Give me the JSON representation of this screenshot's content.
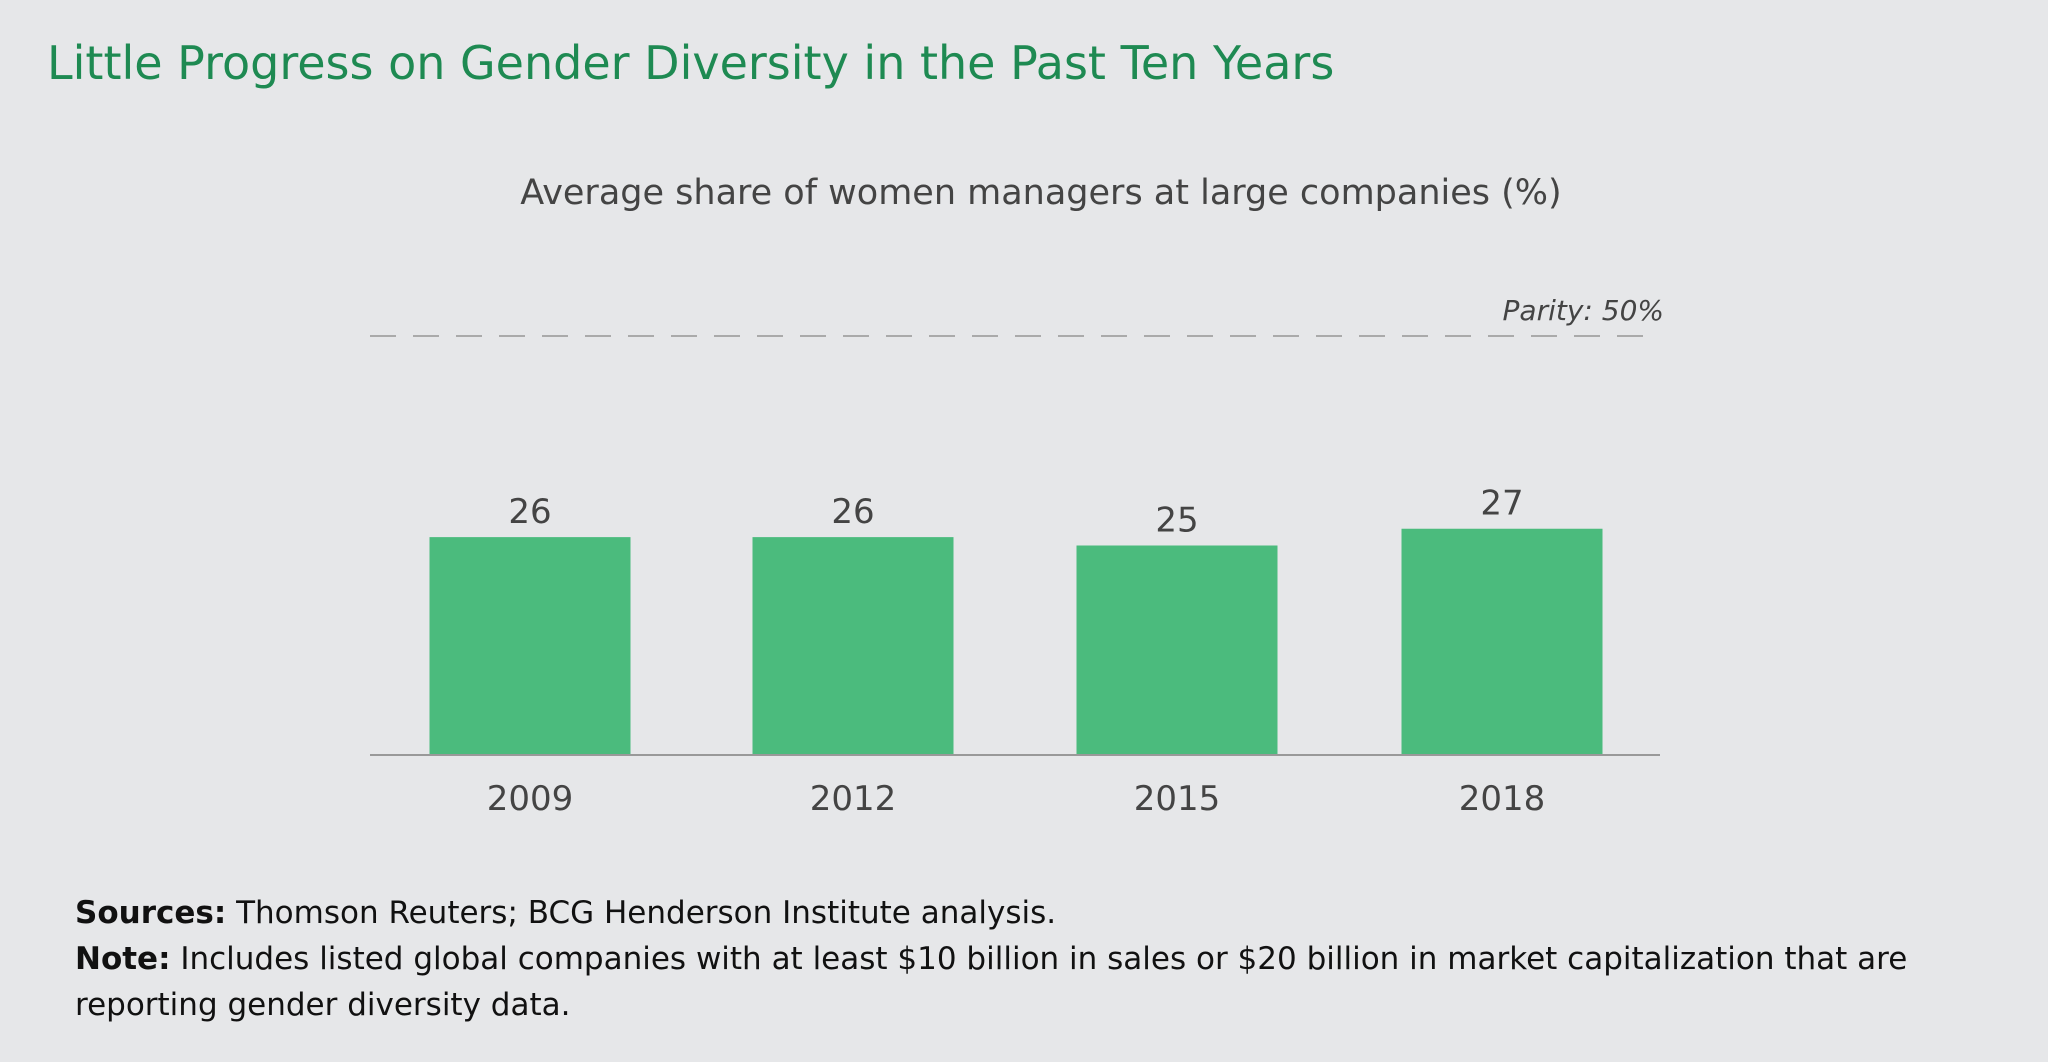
{
  "title": "Little Progress on Gender Diversity in the Past Ten Years",
  "chart_data": {
    "type": "bar",
    "title": "Average share of women managers at large companies (%)",
    "categories": [
      "2009",
      "2012",
      "2015",
      "2018"
    ],
    "values": [
      26,
      26,
      25,
      27
    ],
    "xlabel": "",
    "ylabel": "",
    "ylim": [
      0,
      50
    ],
    "grid": false,
    "reference_line": {
      "value": 50,
      "label": "Parity: 50%",
      "style": "dashed"
    },
    "colors": {
      "bar": "#4bbb7d",
      "reference": "#aaaaaa",
      "title": "#1e8a52"
    }
  },
  "notes": {
    "sources_label": "Sources:",
    "sources_text": " Thomson Reuters; BCG Henderson Institute analysis.",
    "note_label": "Note:",
    "note_text": " Includes listed global companies with at least $10 billion in sales or $20 billion in market capitalization that are reporting gender diversity data."
  }
}
